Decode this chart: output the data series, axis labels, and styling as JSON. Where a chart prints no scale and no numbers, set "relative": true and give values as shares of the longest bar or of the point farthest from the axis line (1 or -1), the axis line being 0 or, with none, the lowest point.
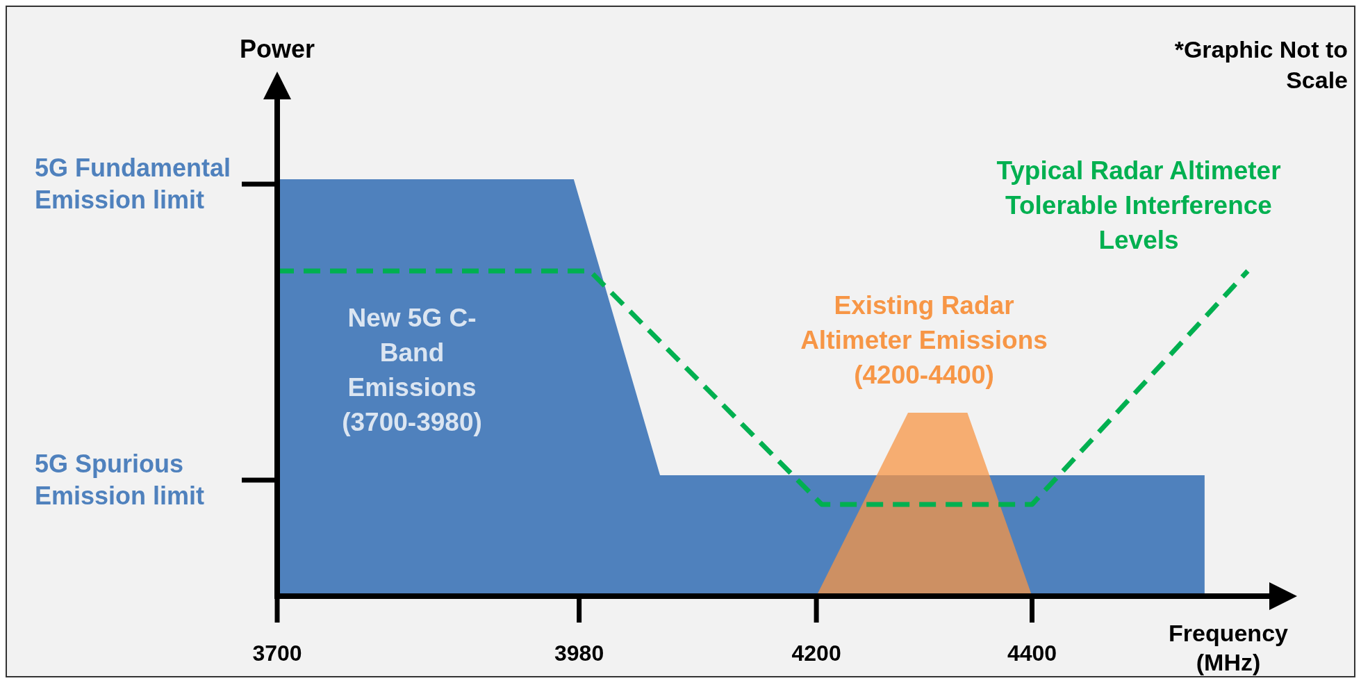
{
  "chart_data": {
    "type": "area",
    "relative": true,
    "ylabel": "Power",
    "xlabel": "Frequency (MHz)",
    "xlim": [
      3700,
      4620
    ],
    "xticks": [
      3700,
      3980,
      4200,
      4400
    ],
    "annotations": [
      "5G Fundamental Emission limit",
      "5G Spurious Emission limit",
      "*Graphic Not to Scale"
    ],
    "series": [
      {
        "name": "New 5G C-Band Emissions (3700-3980)",
        "type": "area",
        "color": "#4f81bd",
        "x": [
          3700,
          3975,
          4055,
          4560,
          4560
        ],
        "values": [
          1,
          1,
          0.29,
          0.29,
          0
        ]
      },
      {
        "name": "Existing Radar Altimeter Emissions (4200-4400)",
        "color": "#f79646",
        "x": [
          4200,
          4285,
          4340,
          4400
        ],
        "values": [
          0,
          0.44,
          0.44,
          0
        ]
      },
      {
        "name": "Typical Radar Altimeter Tolerable Interference Levels",
        "type": "line",
        "color": "#00b050",
        "line_style": "dashed",
        "x": [
          3700,
          3990,
          4205,
          4400,
          4600
        ],
        "values": [
          0.78,
          0.78,
          0.22,
          0.22,
          0.78
        ]
      }
    ]
  }
}
